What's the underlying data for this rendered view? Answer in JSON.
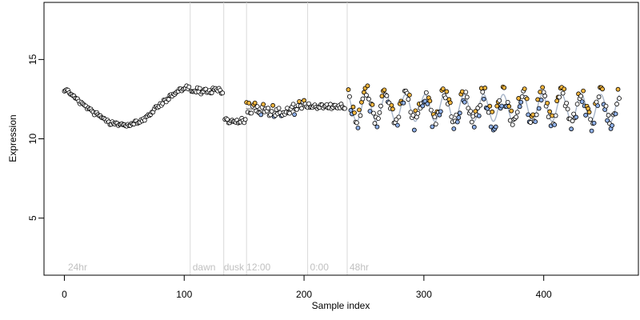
{
  "colors": {
    "fit_step": "#8c8c8c",
    "fit_wave": "#a7b5c9",
    "point_default": "#ffffff",
    "point_high": "#f4b63f",
    "point_low": "#8fb0e8",
    "boundary": "#d9d9d9",
    "phase_text": "#c0c0c0"
  },
  "chart_data": {
    "type": "scatter",
    "xlabel": "Sample index",
    "ylabel": "Expression",
    "xlim": [
      -17,
      479
    ],
    "ylim": [
      1.4,
      18.6
    ],
    "x_ticks": [
      0,
      100,
      200,
      300,
      400
    ],
    "x_tick_labels": [
      "0",
      "100",
      "200",
      "300",
      "400"
    ],
    "y_ticks": [
      5,
      10,
      15
    ],
    "y_tick_labels": [
      "5",
      "10",
      "15"
    ],
    "grid": false,
    "legend": "none",
    "phase_boundaries": [
      105,
      133,
      152,
      203,
      236
    ],
    "phase_labels": [
      {
        "x": 3,
        "text": "24hr"
      },
      {
        "x": 107,
        "text": "dawn"
      },
      {
        "x": 133,
        "text": "dusk"
      },
      {
        "x": 152,
        "text": "12:00"
      },
      {
        "x": 205,
        "text": "0:00"
      },
      {
        "x": 238,
        "text": "48hr"
      }
    ],
    "segments": [
      {
        "kind": "curve",
        "x_start": 0,
        "x_end": 104,
        "stride": 1,
        "model": "smooth",
        "params": [
          13.1,
          12.3,
          11.6,
          11.0,
          10.9,
          11.2,
          12.0,
          12.8,
          13.3
        ],
        "noise": 0.12
      },
      {
        "kind": "flat",
        "x_start": 106,
        "x_end": 132,
        "stride": 1,
        "level": 13.05,
        "noise": 0.2
      },
      {
        "kind": "flat",
        "x_start": 134,
        "x_end": 151,
        "stride": 1,
        "level": 11.15,
        "noise": 0.18
      },
      {
        "kind": "curve",
        "x_start": 152,
        "x_end": 203,
        "stride": 1,
        "model": "smooth",
        "params": [
          11.9,
          11.8,
          11.7,
          11.9,
          12.1
        ],
        "noise": 0.38
      },
      {
        "kind": "flat",
        "x_start": 204,
        "x_end": 234,
        "stride": 1,
        "level": 12.05,
        "noise": 0.18
      },
      {
        "kind": "sine",
        "x_start": 237,
        "x_end": 463,
        "stride": 1,
        "model": "sine",
        "params": [
          11.95,
          0.85,
          16.3,
          248
        ],
        "noise": 0.55
      }
    ],
    "highlight_threshold": 0.28
  }
}
